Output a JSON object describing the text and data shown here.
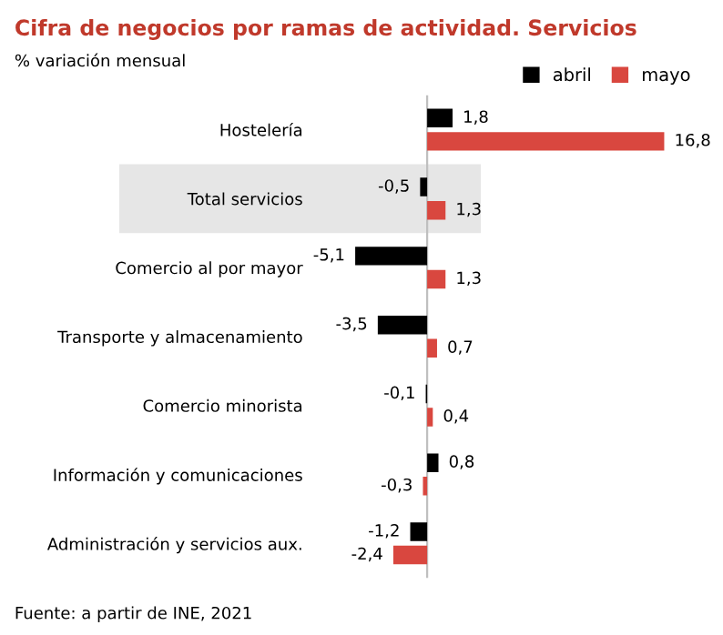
{
  "chart_data": {
    "type": "bar",
    "orientation": "horizontal",
    "title": "Cifra de negocios por ramas de actividad. Servicios",
    "subtitle": "% variación mensual",
    "categories": [
      "Hostelería",
      "Total servicios",
      "Comercio al por mayor",
      "Transporte y almacenamiento",
      "Comercio minorista",
      "Información y comunicaciones",
      "Administración y servicios aux."
    ],
    "series": [
      {
        "name": "abril",
        "color": "#000000",
        "values": [
          1.8,
          -0.5,
          -5.1,
          -3.5,
          -0.1,
          0.8,
          -1.2
        ],
        "value_labels": [
          "1,8",
          "-0,5",
          "-5,1",
          "-3,5",
          "-0,1",
          "0,8",
          "-1,2"
        ]
      },
      {
        "name": "mayo",
        "color": "#d9473f",
        "values": [
          16.8,
          1.3,
          1.3,
          0.7,
          0.4,
          -0.3,
          -2.4
        ],
        "value_labels": [
          "16,8",
          "1,3",
          "1,3",
          "0,7",
          "0,4",
          "-0,3",
          "-2,4"
        ]
      }
    ],
    "legend": "top right",
    "tick_labels": "y",
    "grid": false,
    "annotations": [
      "Fuente: a partir de INE, 2021"
    ]
  }
}
